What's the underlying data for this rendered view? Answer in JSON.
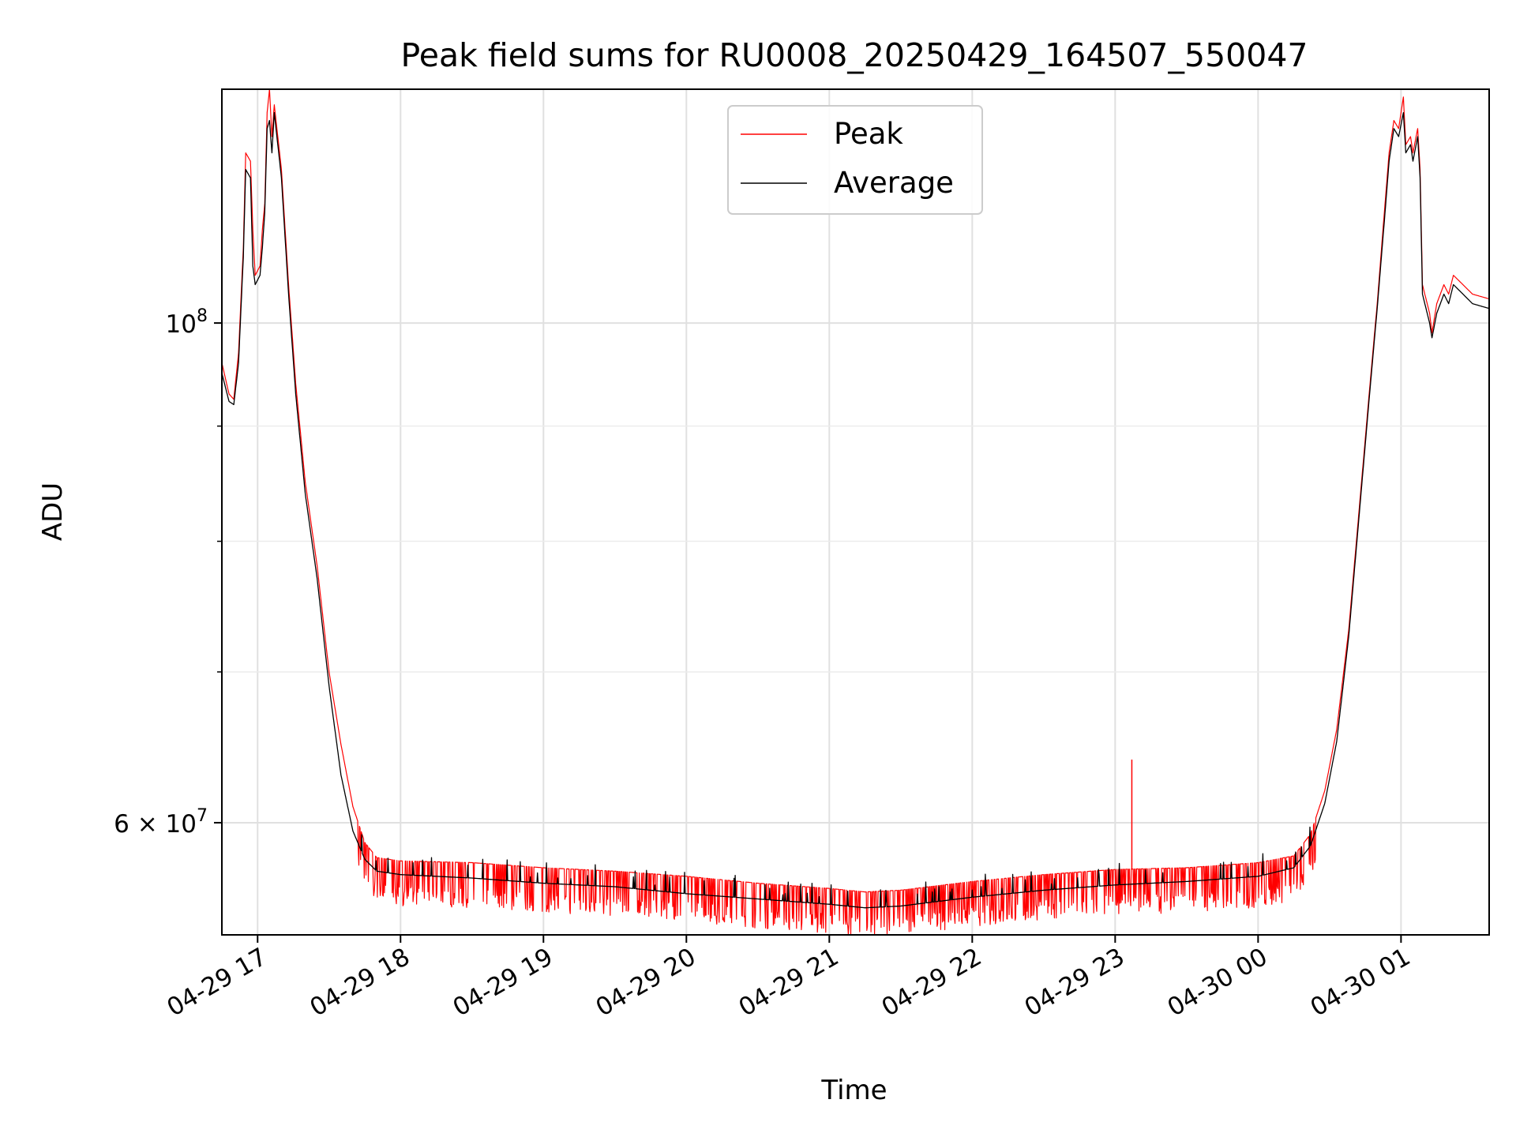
{
  "chart_data": {
    "type": "line",
    "title": "Peak field sums for RU0008_20250429_164507_550047",
    "xlabel": "Time",
    "ylabel": "ADU",
    "yscale": "log",
    "xlim": [
      "2025-04-29 16:45",
      "2025-04-30 01:37"
    ],
    "ylim": [
      53500000,
      127000000
    ],
    "grid": true,
    "legend_position": "top-center",
    "x_ticks": [
      {
        "t": "2025-04-29 17:00",
        "label": "04-29 17"
      },
      {
        "t": "2025-04-29 18:00",
        "label": "04-29 18"
      },
      {
        "t": "2025-04-29 19:00",
        "label": "04-29 19"
      },
      {
        "t": "2025-04-29 20:00",
        "label": "04-29 20"
      },
      {
        "t": "2025-04-29 21:00",
        "label": "04-29 21"
      },
      {
        "t": "2025-04-29 22:00",
        "label": "04-29 22"
      },
      {
        "t": "2025-04-29 23:00",
        "label": "04-29 23"
      },
      {
        "t": "2025-04-30 00:00",
        "label": "04-30 00"
      },
      {
        "t": "2025-04-30 01:00",
        "label": "04-30 01"
      }
    ],
    "y_major_ticks": [
      {
        "value": 60000000,
        "mantissa": "6",
        "exp": "7"
      },
      {
        "value": 100000000,
        "mantissa": "",
        "exp": "8"
      }
    ],
    "y_minor_ticks": [
      70000000,
      80000000,
      90000000
    ],
    "series": [
      {
        "name": "Peak",
        "color": "#ff0000",
        "spiky": true,
        "points": [
          [
            "2025-04-29 16:45",
            96000000
          ],
          [
            "2025-04-29 16:48",
            93000000
          ],
          [
            "2025-04-29 16:50",
            92500000
          ],
          [
            "2025-04-29 16:52",
            97000000
          ],
          [
            "2025-04-29 16:54",
            108000000
          ],
          [
            "2025-04-29 16:55",
            119000000
          ],
          [
            "2025-04-29 16:57",
            118000000
          ],
          [
            "2025-04-29 16:58",
            110000000
          ],
          [
            "2025-04-29 16:59",
            105000000
          ],
          [
            "2025-04-29 17:01",
            106000000
          ],
          [
            "2025-04-29 17:02",
            110000000
          ],
          [
            "2025-04-29 17:03",
            113000000
          ],
          [
            "2025-04-29 17:04",
            124000000
          ],
          [
            "2025-04-29 17:05",
            127000000
          ],
          [
            "2025-04-29 17:06",
            121000000
          ],
          [
            "2025-04-29 17:07",
            125000000
          ],
          [
            "2025-04-29 17:10",
            117000000
          ],
          [
            "2025-04-29 17:13",
            104000000
          ],
          [
            "2025-04-29 17:16",
            94000000
          ],
          [
            "2025-04-29 17:20",
            85000000
          ],
          [
            "2025-04-29 17:25",
            78000000
          ],
          [
            "2025-04-29 17:30",
            70000000
          ],
          [
            "2025-04-29 17:35",
            65000000
          ],
          [
            "2025-04-29 17:40",
            61000000
          ],
          [
            "2025-04-29 17:45",
            58800000
          ],
          [
            "2025-04-29 17:50",
            57900000
          ],
          [
            "2025-04-29 18:00",
            57700000
          ],
          [
            "2025-04-29 18:30",
            57600000
          ],
          [
            "2025-04-29 19:00",
            57300000
          ],
          [
            "2025-04-29 19:30",
            57100000
          ],
          [
            "2025-04-29 20:00",
            56800000
          ],
          [
            "2025-04-29 20:30",
            56400000
          ],
          [
            "2025-04-29 21:00",
            56100000
          ],
          [
            "2025-04-29 21:15",
            55900000
          ],
          [
            "2025-04-29 21:30",
            56000000
          ],
          [
            "2025-04-29 22:00",
            56500000
          ],
          [
            "2025-04-29 22:30",
            56900000
          ],
          [
            "2025-04-29 23:00",
            57200000
          ],
          [
            "2025-04-29 23:30",
            57300000
          ],
          [
            "2025-04-30 00:00",
            57600000
          ],
          [
            "2025-04-30 00:15",
            58000000
          ],
          [
            "2025-04-30 00:22",
            59300000
          ],
          [
            "2025-04-30 00:28",
            62000000
          ],
          [
            "2025-04-30 00:33",
            66000000
          ],
          [
            "2025-04-30 00:38",
            73000000
          ],
          [
            "2025-04-30 00:43",
            84000000
          ],
          [
            "2025-04-30 00:47",
            94000000
          ],
          [
            "2025-04-30 00:50",
            102000000
          ],
          [
            "2025-04-30 00:53",
            112000000
          ],
          [
            "2025-04-30 00:55",
            119000000
          ],
          [
            "2025-04-30 00:57",
            123000000
          ],
          [
            "2025-04-30 00:59",
            122000000
          ],
          [
            "2025-04-30 01:01",
            126000000
          ],
          [
            "2025-04-30 01:02",
            120000000
          ],
          [
            "2025-04-30 01:04",
            121000000
          ],
          [
            "2025-04-30 01:05",
            119000000
          ],
          [
            "2025-04-30 01:07",
            122000000
          ],
          [
            "2025-04-30 01:08",
            117000000
          ],
          [
            "2025-04-30 01:09",
            104000000
          ],
          [
            "2025-04-30 01:12",
            101000000
          ],
          [
            "2025-04-30 01:13",
            99000000
          ],
          [
            "2025-04-30 01:15",
            102000000
          ],
          [
            "2025-04-30 01:18",
            104000000
          ],
          [
            "2025-04-30 01:20",
            103000000
          ],
          [
            "2025-04-30 01:22",
            105000000
          ],
          [
            "2025-04-30 01:26",
            104000000
          ],
          [
            "2025-04-30 01:30",
            103000000
          ],
          [
            "2025-04-30 01:37",
            102500000
          ]
        ],
        "spikes": [
          [
            "2025-04-29 23:07",
            64000000
          ]
        ]
      },
      {
        "name": "Average",
        "color": "#000000",
        "spiky": false,
        "points": [
          [
            "2025-04-29 16:45",
            95000000
          ],
          [
            "2025-04-29 16:48",
            92300000
          ],
          [
            "2025-04-29 16:50",
            92000000
          ],
          [
            "2025-04-29 16:52",
            96000000
          ],
          [
            "2025-04-29 16:54",
            107000000
          ],
          [
            "2025-04-29 16:55",
            117000000
          ],
          [
            "2025-04-29 16:57",
            116000000
          ],
          [
            "2025-04-29 16:58",
            106000000
          ],
          [
            "2025-04-29 16:59",
            104000000
          ],
          [
            "2025-04-29 17:01",
            105000000
          ],
          [
            "2025-04-29 17:02",
            108000000
          ],
          [
            "2025-04-29 17:03",
            112000000
          ],
          [
            "2025-04-29 17:04",
            122000000
          ],
          [
            "2025-04-29 17:05",
            123000000
          ],
          [
            "2025-04-29 17:06",
            119000000
          ],
          [
            "2025-04-29 17:07",
            124000000
          ],
          [
            "2025-04-29 17:10",
            116000000
          ],
          [
            "2025-04-29 17:13",
            103000000
          ],
          [
            "2025-04-29 17:16",
            93000000
          ],
          [
            "2025-04-29 17:20",
            84000000
          ],
          [
            "2025-04-29 17:25",
            77000000
          ],
          [
            "2025-04-29 17:30",
            69000000
          ],
          [
            "2025-04-29 17:35",
            63000000
          ],
          [
            "2025-04-29 17:40",
            59500000
          ],
          [
            "2025-04-29 17:45",
            57800000
          ],
          [
            "2025-04-29 17:50",
            57100000
          ],
          [
            "2025-04-29 18:00",
            56900000
          ],
          [
            "2025-04-29 18:30",
            56700000
          ],
          [
            "2025-04-29 19:00",
            56400000
          ],
          [
            "2025-04-29 19:30",
            56200000
          ],
          [
            "2025-04-29 20:00",
            55800000
          ],
          [
            "2025-04-29 20:30",
            55500000
          ],
          [
            "2025-04-29 21:00",
            55200000
          ],
          [
            "2025-04-29 21:15",
            55000000
          ],
          [
            "2025-04-29 21:30",
            55100000
          ],
          [
            "2025-04-29 22:00",
            55600000
          ],
          [
            "2025-04-29 22:30",
            56000000
          ],
          [
            "2025-04-29 23:00",
            56300000
          ],
          [
            "2025-04-29 23:30",
            56500000
          ],
          [
            "2025-04-30 00:00",
            56800000
          ],
          [
            "2025-04-30 00:15",
            57300000
          ],
          [
            "2025-04-30 00:22",
            58600000
          ],
          [
            "2025-04-30 00:28",
            61200000
          ],
          [
            "2025-04-30 00:33",
            65200000
          ],
          [
            "2025-04-30 00:38",
            72500000
          ],
          [
            "2025-04-30 00:43",
            83500000
          ],
          [
            "2025-04-30 00:47",
            93500000
          ],
          [
            "2025-04-30 00:50",
            101500000
          ],
          [
            "2025-04-30 00:53",
            111000000
          ],
          [
            "2025-04-30 00:55",
            118000000
          ],
          [
            "2025-04-30 00:57",
            122000000
          ],
          [
            "2025-04-30 00:59",
            121000000
          ],
          [
            "2025-04-30 01:01",
            124000000
          ],
          [
            "2025-04-30 01:02",
            119000000
          ],
          [
            "2025-04-30 01:04",
            120000000
          ],
          [
            "2025-04-30 01:05",
            118000000
          ],
          [
            "2025-04-30 01:07",
            121000000
          ],
          [
            "2025-04-30 01:08",
            116000000
          ],
          [
            "2025-04-30 01:09",
            103000000
          ],
          [
            "2025-04-30 01:12",
            100000000
          ],
          [
            "2025-04-30 01:13",
            98500000
          ],
          [
            "2025-04-30 01:15",
            101000000
          ],
          [
            "2025-04-30 01:18",
            103000000
          ],
          [
            "2025-04-30 01:20",
            102000000
          ],
          [
            "2025-04-30 01:22",
            104000000
          ],
          [
            "2025-04-30 01:26",
            103000000
          ],
          [
            "2025-04-30 01:30",
            102000000
          ],
          [
            "2025-04-30 01:37",
            101500000
          ]
        ]
      }
    ]
  }
}
